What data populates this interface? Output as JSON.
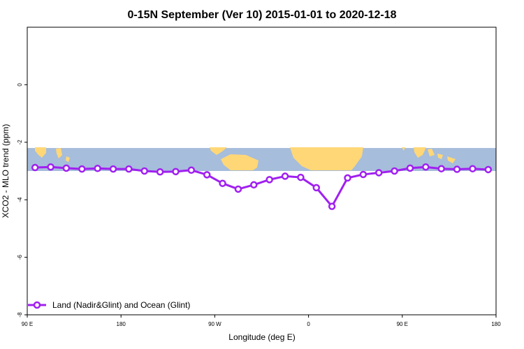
{
  "chart_data": {
    "type": "line",
    "title": "0-15N September (Ver 10)   2015-01-01 to 2020-12-18",
    "xlabel": "Longitude (deg E)",
    "ylabel": "XCO2 - MLO trend (ppm)",
    "xlim": [
      -90,
      210
    ],
    "ylim": [
      -8,
      2
    ],
    "x_ticks": [
      {
        "value": -90,
        "label": "90 E"
      },
      {
        "value": -30,
        "label": "180"
      },
      {
        "value": 30,
        "label": "90 W"
      },
      {
        "value": 90,
        "label": "0"
      },
      {
        "value": 150,
        "label": "90 E"
      },
      {
        "value": 210,
        "label": "180"
      }
    ],
    "y_ticks": [
      {
        "value": 0,
        "label": "0"
      },
      {
        "value": -2,
        "label": "-2"
      },
      {
        "value": -4,
        "label": "-4"
      },
      {
        "value": -6,
        "label": "-6"
      },
      {
        "value": -8,
        "label": "-8"
      }
    ],
    "map_band": {
      "y_min": -3,
      "y_max": -2.2,
      "ocean_color": "#a6bddb",
      "land_color": "#ffd777"
    },
    "series": [
      {
        "name": "Land (Nadir&Glint) and Ocean (Glint)",
        "color": "#a020f0",
        "x": [
          -85,
          -75,
          -65,
          -55,
          -45,
          -35,
          -25,
          -15,
          -5,
          5,
          15,
          25,
          35,
          45,
          55,
          65,
          75,
          85,
          95,
          105,
          115,
          125,
          135,
          145,
          155,
          165,
          175,
          185,
          195,
          205
        ],
        "y": [
          -2.88,
          -2.86,
          -2.9,
          -2.93,
          -2.91,
          -2.93,
          -2.93,
          -3.0,
          -3.03,
          -3.02,
          -2.97,
          -3.13,
          -3.43,
          -3.63,
          -3.48,
          -3.3,
          -3.18,
          -3.22,
          -3.58,
          -4.23,
          -3.24,
          -3.12,
          -3.06,
          -3.0,
          -2.9,
          -2.86,
          -2.92,
          -2.94,
          -2.92,
          -2.95
        ]
      }
    ],
    "legend": {
      "position": "bottom-left"
    }
  }
}
